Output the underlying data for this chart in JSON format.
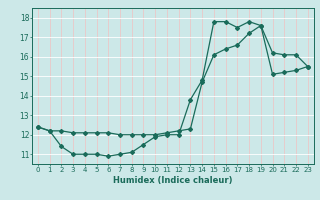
{
  "xlabel": "Humidex (Indice chaleur)",
  "ylabel": "",
  "bg_color": "#cce8e8",
  "grid_color": "#ffffff",
  "line_color": "#1a6b5a",
  "xlim": [
    -0.5,
    23.5
  ],
  "ylim": [
    10.5,
    18.5
  ],
  "yticks": [
    11,
    12,
    13,
    14,
    15,
    16,
    17,
    18
  ],
  "xticks": [
    0,
    1,
    2,
    3,
    4,
    5,
    6,
    7,
    8,
    9,
    10,
    11,
    12,
    13,
    14,
    15,
    16,
    17,
    18,
    19,
    20,
    21,
    22,
    23
  ],
  "line1_x": [
    0,
    1,
    2,
    3,
    4,
    5,
    6,
    7,
    8,
    9,
    10,
    11,
    12,
    13,
    14,
    15,
    16,
    17,
    18,
    19,
    20,
    21,
    22,
    23
  ],
  "line1_y": [
    12.4,
    12.2,
    11.4,
    11.0,
    11.0,
    11.0,
    10.9,
    11.0,
    11.1,
    11.5,
    11.9,
    12.0,
    12.0,
    13.8,
    14.8,
    17.8,
    17.8,
    17.5,
    17.8,
    17.6,
    16.2,
    16.1,
    16.1,
    15.5
  ],
  "line2_x": [
    0,
    1,
    2,
    3,
    4,
    5,
    6,
    7,
    8,
    9,
    10,
    11,
    12,
    13,
    14,
    15,
    16,
    17,
    18,
    19,
    20,
    21,
    22,
    23
  ],
  "line2_y": [
    12.4,
    12.2,
    12.2,
    12.1,
    12.1,
    12.1,
    12.1,
    12.0,
    12.0,
    12.0,
    12.0,
    12.1,
    12.2,
    12.3,
    14.7,
    16.1,
    16.4,
    16.6,
    17.2,
    17.6,
    15.1,
    15.2,
    15.3,
    15.5
  ]
}
